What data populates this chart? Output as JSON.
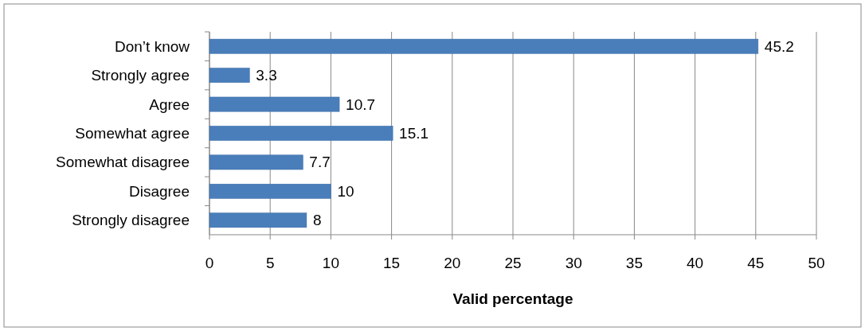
{
  "chart_data": {
    "type": "bar",
    "orientation": "horizontal",
    "categories": [
      "Don’t know",
      "Strongly agree",
      "Agree",
      "Somewhat agree",
      "Somewhat disagree",
      "Disagree",
      "Strongly disagree"
    ],
    "values": [
      45.2,
      3.3,
      10.7,
      15.1,
      7.7,
      10,
      8
    ],
    "color": "#4a7ebb",
    "xlim": [
      0,
      50
    ],
    "xticks": [
      0,
      5,
      10,
      15,
      20,
      25,
      30,
      35,
      40,
      45,
      50
    ],
    "xlabel": "Valid percentage",
    "grid": "x",
    "data_labels": true
  }
}
